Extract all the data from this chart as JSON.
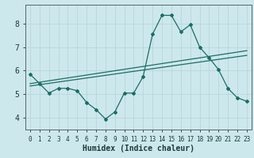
{
  "xlabel": "Humidex (Indice chaleur)",
  "ylabel": "",
  "bg_color": "#cde8ec",
  "grid_color": "#b8d5d9",
  "line_color": "#1a6e65",
  "xlim": [
    -0.5,
    23.5
  ],
  "ylim": [
    3.5,
    8.8
  ],
  "yticks": [
    4,
    5,
    6,
    7,
    8
  ],
  "xticks": [
    0,
    1,
    2,
    3,
    4,
    5,
    6,
    7,
    8,
    9,
    10,
    11,
    12,
    13,
    14,
    15,
    16,
    17,
    18,
    19,
    20,
    21,
    22,
    23
  ],
  "series1_x": [
    0,
    1,
    2,
    3,
    4,
    5,
    6,
    7,
    8,
    9,
    10,
    11,
    12,
    13,
    14,
    15,
    16,
    17,
    18,
    19,
    20,
    21,
    22,
    23
  ],
  "series1_y": [
    5.85,
    5.45,
    5.05,
    5.25,
    5.25,
    5.15,
    4.65,
    4.35,
    3.95,
    4.25,
    5.05,
    5.05,
    5.75,
    7.55,
    8.35,
    8.35,
    7.65,
    7.95,
    7.0,
    6.55,
    6.05,
    5.25,
    4.85,
    4.7
  ],
  "series2_x": [
    0,
    23
  ],
  "series2_y": [
    5.45,
    6.85
  ],
  "series3_x": [
    0,
    23
  ],
  "series3_y": [
    5.35,
    6.65
  ],
  "xlabel_fontsize": 7,
  "tick_fontsize_x": 5.5,
  "tick_fontsize_y": 7
}
